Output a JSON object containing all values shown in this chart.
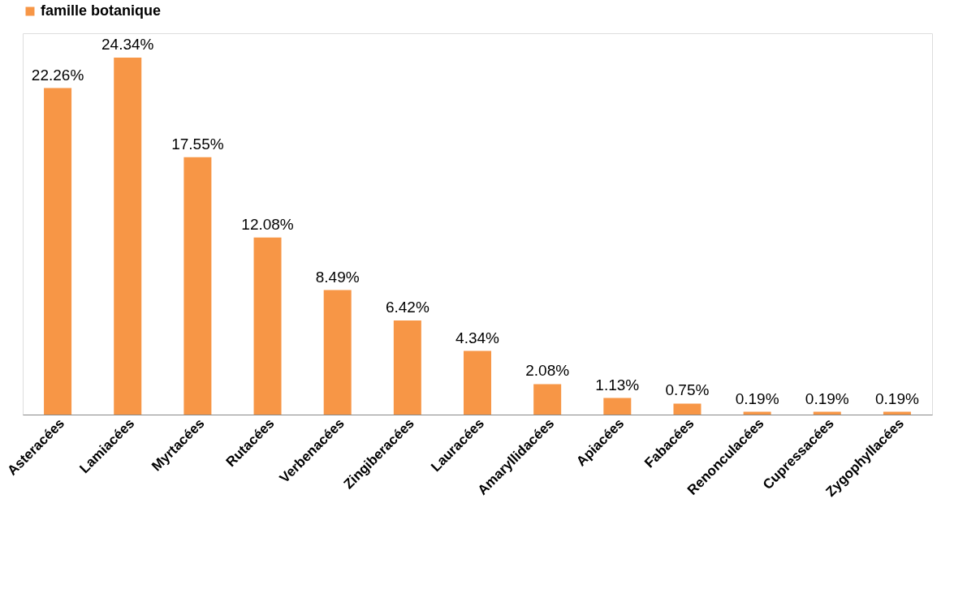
{
  "chart_data": {
    "type": "bar",
    "categories": [
      "Asteracées",
      "Lamiacées",
      "Myrtacées",
      "Rutacées",
      "Verbenacées",
      "Zingiberacées",
      "Lauracées",
      "Amaryllidacées",
      "Apiacées",
      "Fabacées",
      "Renonculacées",
      "Cupressacées",
      "Zygophyllacées"
    ],
    "series": [
      {
        "name": "famille botanique",
        "color": "#f79646",
        "values": [
          22.26,
          24.34,
          17.55,
          12.08,
          8.49,
          6.42,
          4.34,
          2.08,
          1.13,
          0.75,
          0.19,
          0.19,
          0.19
        ],
        "value_labels": [
          "22.26%",
          "24.34%",
          "17.55%",
          "12.08%",
          "8.49%",
          "6.42%",
          "4.34%",
          "2.08%",
          "1.13%",
          "0.75%",
          "0.19%",
          "0.19%",
          "0.19%"
        ]
      }
    ],
    "legend": "top",
    "grid": false
  }
}
